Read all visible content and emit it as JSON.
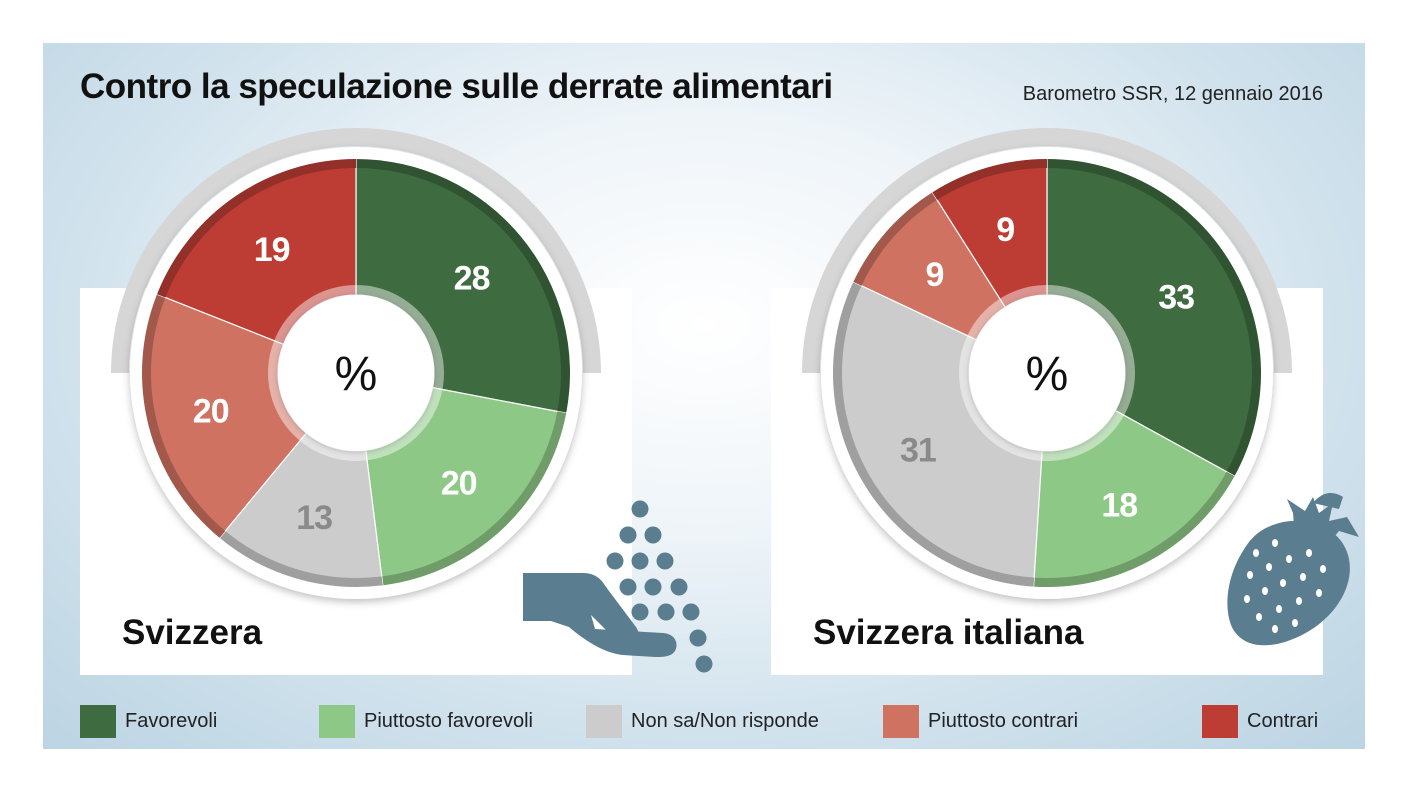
{
  "title": "Contro la speculazione sulle derrate alimentari",
  "source": "Barometro SSR, 12 gennaio 2016",
  "colors": {
    "favorevoli": "#3e6b3f",
    "piuttosto_favorevoli": "#8ec887",
    "non_sa": "#cccccc",
    "piuttosto_contrari": "#d07262",
    "contrari": "#bd3d35",
    "icon": "#5a7d90"
  },
  "chart_data": [
    {
      "type": "pie",
      "title": "Svizzera",
      "center_label": "%",
      "categories": [
        "Favorevoli",
        "Piuttosto favorevoli",
        "Non sa/Non risponde",
        "Piuttosto contrari",
        "Contrari"
      ],
      "values": [
        28,
        20,
        13,
        20,
        19
      ]
    },
    {
      "type": "pie",
      "title": "Svizzera italiana",
      "center_label": "%",
      "categories": [
        "Favorevoli",
        "Piuttosto favorevoli",
        "Non sa/Non risponde",
        "Piuttosto contrari",
        "Contrari"
      ],
      "values": [
        33,
        18,
        31,
        9,
        9
      ]
    }
  ],
  "legend": [
    {
      "label": "Favorevoli",
      "color": "#3e6b3f"
    },
    {
      "label": "Piuttosto favorevoli",
      "color": "#8ec887"
    },
    {
      "label": "Non sa/Non risponde",
      "color": "#cccccc"
    },
    {
      "label": "Piuttosto contrari",
      "color": "#d07262"
    },
    {
      "label": "Contrari",
      "color": "#bd3d35"
    }
  ],
  "icons": [
    "hand-with-grain-icon",
    "strawberry-icon"
  ]
}
